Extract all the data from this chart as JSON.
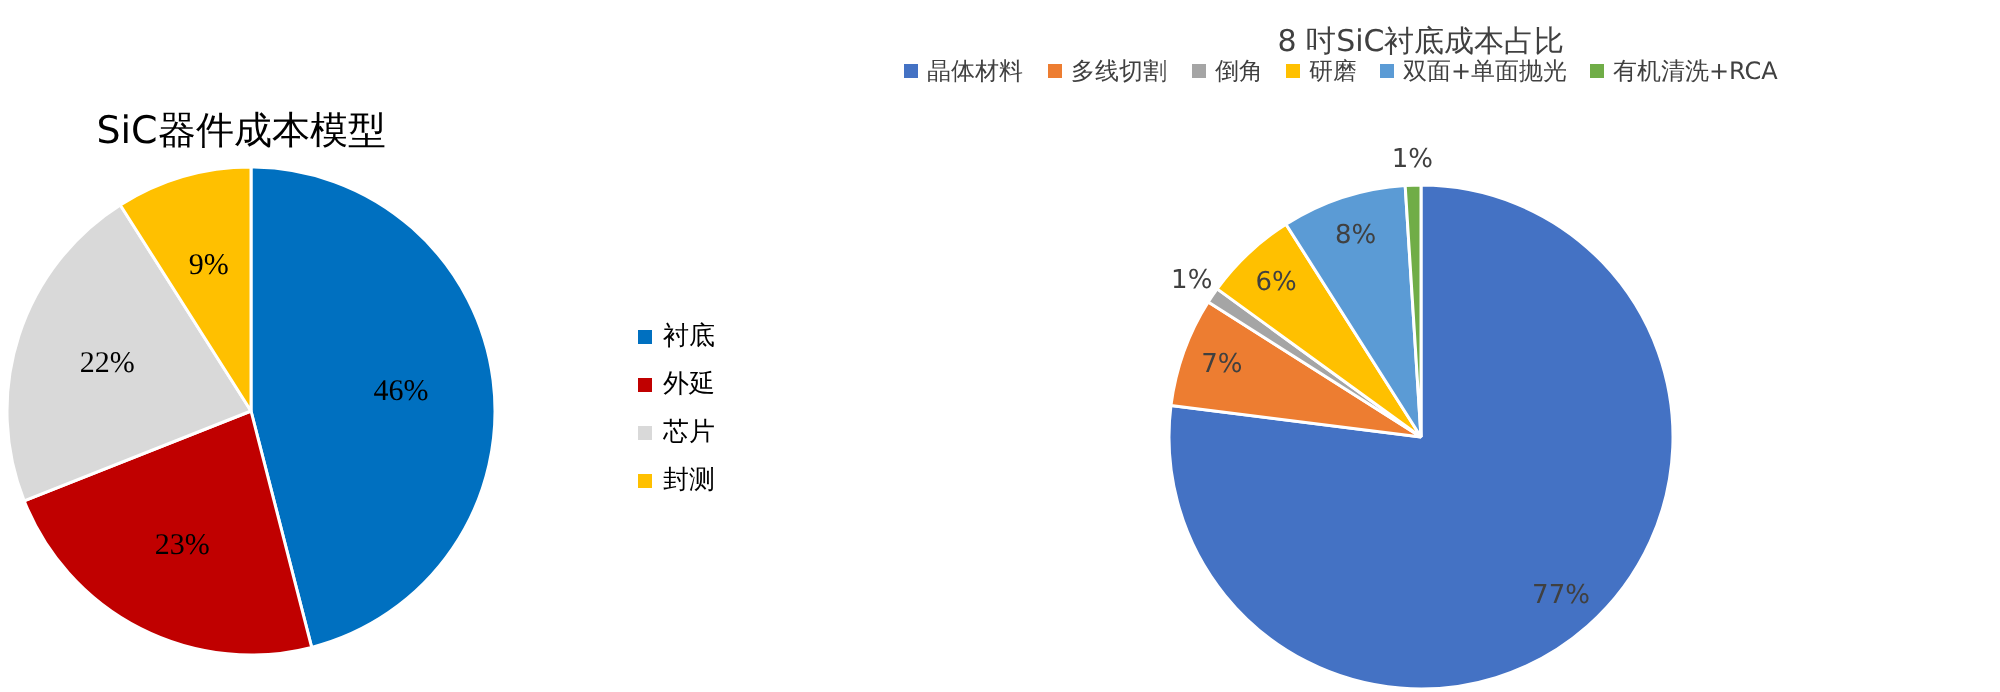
{
  "chart_data": [
    {
      "type": "pie",
      "title": "SiC器件成本模型",
      "categories": [
        "衬底",
        "外延",
        "芯片",
        "封测"
      ],
      "values": [
        46,
        23,
        22,
        9
      ],
      "colors": [
        "#0070c0",
        "#c00000",
        "#d9d9d9",
        "#ffc000"
      ],
      "value_labels": [
        "46%",
        "23%",
        "22%",
        "9%"
      ],
      "legend": "right"
    },
    {
      "type": "pie",
      "title": "8 吋SiC衬底成本占比",
      "categories": [
        "晶体材料",
        "多线切割",
        "倒角",
        "研磨",
        "双面+单面抛光",
        "有机清洗+RCA"
      ],
      "values": [
        77,
        7,
        1,
        6,
        8,
        1
      ],
      "colors": [
        "#4472c4",
        "#ed7d31",
        "#a5a5a5",
        "#ffc000",
        "#5b9bd5",
        "#70ad47"
      ],
      "value_labels": [
        "77%",
        "7%",
        "1%",
        "6%",
        "8%",
        "1%"
      ],
      "legend": "top"
    }
  ]
}
